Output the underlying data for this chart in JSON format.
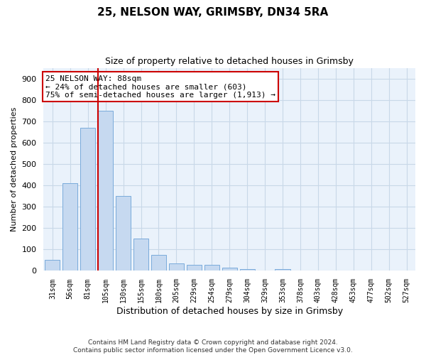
{
  "title_line1": "25, NELSON WAY, GRIMSBY, DN34 5RA",
  "title_line2": "Size of property relative to detached houses in Grimsby",
  "xlabel": "Distribution of detached houses by size in Grimsby",
  "ylabel": "Number of detached properties",
  "footer_line1": "Contains HM Land Registry data © Crown copyright and database right 2024.",
  "footer_line2": "Contains public sector information licensed under the Open Government Licence v3.0.",
  "bar_labels": [
    "31sqm",
    "56sqm",
    "81sqm",
    "105sqm",
    "130sqm",
    "155sqm",
    "180sqm",
    "205sqm",
    "229sqm",
    "254sqm",
    "279sqm",
    "304sqm",
    "329sqm",
    "353sqm",
    "378sqm",
    "403sqm",
    "428sqm",
    "453sqm",
    "477sqm",
    "502sqm",
    "527sqm"
  ],
  "bar_values": [
    50,
    410,
    670,
    750,
    350,
    150,
    75,
    35,
    28,
    28,
    15,
    8,
    0,
    8,
    0,
    0,
    0,
    0,
    0,
    0,
    0
  ],
  "bar_color": "#c6d9f0",
  "bar_edgecolor": "#7aabdb",
  "grid_color": "#c8d8e8",
  "background_color": "#eaf2fb",
  "vline_x": 2.575,
  "vline_color": "#cc0000",
  "annotation_line1": "25 NELSON WAY: 88sqm",
  "annotation_line2": "← 24% of detached houses are smaller (603)",
  "annotation_line3": "75% of semi-detached houses are larger (1,913) →",
  "annotation_box_color": "#ffffff",
  "annotation_box_edgecolor": "#cc0000",
  "ylim": [
    0,
    950
  ],
  "yticks": [
    0,
    100,
    200,
    300,
    400,
    500,
    600,
    700,
    800,
    900
  ]
}
